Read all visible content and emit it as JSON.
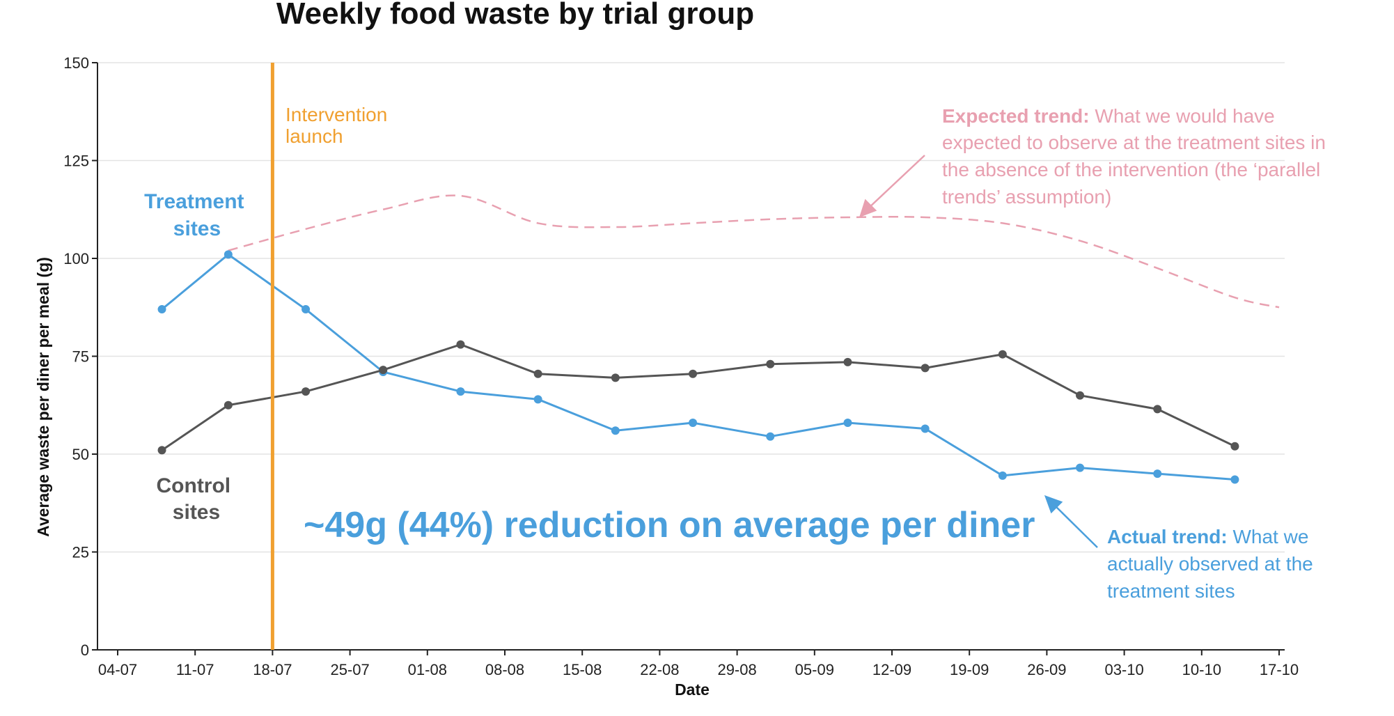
{
  "chart_data": {
    "type": "line",
    "title": "Weekly food waste by trial group",
    "xlabel": "Date",
    "ylabel": "Average waste per diner per meal (g)",
    "ylim": [
      0,
      150
    ],
    "yticks": [
      0,
      25,
      50,
      75,
      100,
      125,
      150
    ],
    "grid": "horizontal",
    "xticks": [
      "04-07",
      "11-07",
      "18-07",
      "25-07",
      "01-08",
      "08-08",
      "15-08",
      "22-08",
      "29-08",
      "05-09",
      "12-09",
      "19-09",
      "26-09",
      "03-10",
      "10-10",
      "17-10"
    ],
    "x": [
      "08-07",
      "14-07",
      "21-07",
      "28-07",
      "04-08",
      "11-08",
      "18-08",
      "25-08",
      "01-09",
      "08-09",
      "15-09",
      "22-09",
      "29-09",
      "06-10",
      "13-10"
    ],
    "series": [
      {
        "name": "Treatment sites",
        "color": "#4a9fdc",
        "values": [
          87,
          101,
          87,
          71,
          66,
          64,
          56,
          58,
          54.5,
          58,
          56.5,
          44.5,
          46.5,
          45,
          43.5
        ]
      },
      {
        "name": "Control sites",
        "color": "#555555",
        "values": [
          51,
          62.5,
          66,
          71.5,
          78,
          70.5,
          69.5,
          70.5,
          73,
          73.5,
          72,
          75.5,
          65,
          61.5,
          52
        ]
      }
    ],
    "expected_trend": {
      "color": "#e8a0b0",
      "style": "dashed",
      "x": [
        "14-07",
        "21-07",
        "28-07",
        "04-08",
        "11-08",
        "18-08",
        "25-08",
        "01-09",
        "08-09",
        "15-09",
        "22-09",
        "29-09",
        "06-10",
        "13-10",
        "17-10"
      ],
      "values": [
        102,
        107.5,
        112.5,
        116,
        109,
        108,
        109,
        110,
        110.5,
        110.5,
        109,
        104.5,
        97.5,
        90,
        87.5
      ]
    },
    "intervention_date": "18-07",
    "intervention_color": "#f0a030"
  },
  "annotations": {
    "intervention_line1": "Intervention",
    "intervention_line2": "launch",
    "treatment_label_1": "Treatment",
    "treatment_label_2": "sites",
    "control_label_1": "Control",
    "control_label_2": "sites",
    "reduction": "~49g (44%) reduction on average per diner",
    "expected_bold": "Expected trend:",
    "expected_line1": " What we would have",
    "expected_line2": "expected to observe at the treatment sites in",
    "expected_line3": "the absence of the intervention (the ‘parallel",
    "expected_line4": "trends’ assumption)",
    "actual_bold": "Actual trend:",
    "actual_line1": " What we",
    "actual_line2": "actually observed at the",
    "actual_line3": "treatment sites"
  }
}
